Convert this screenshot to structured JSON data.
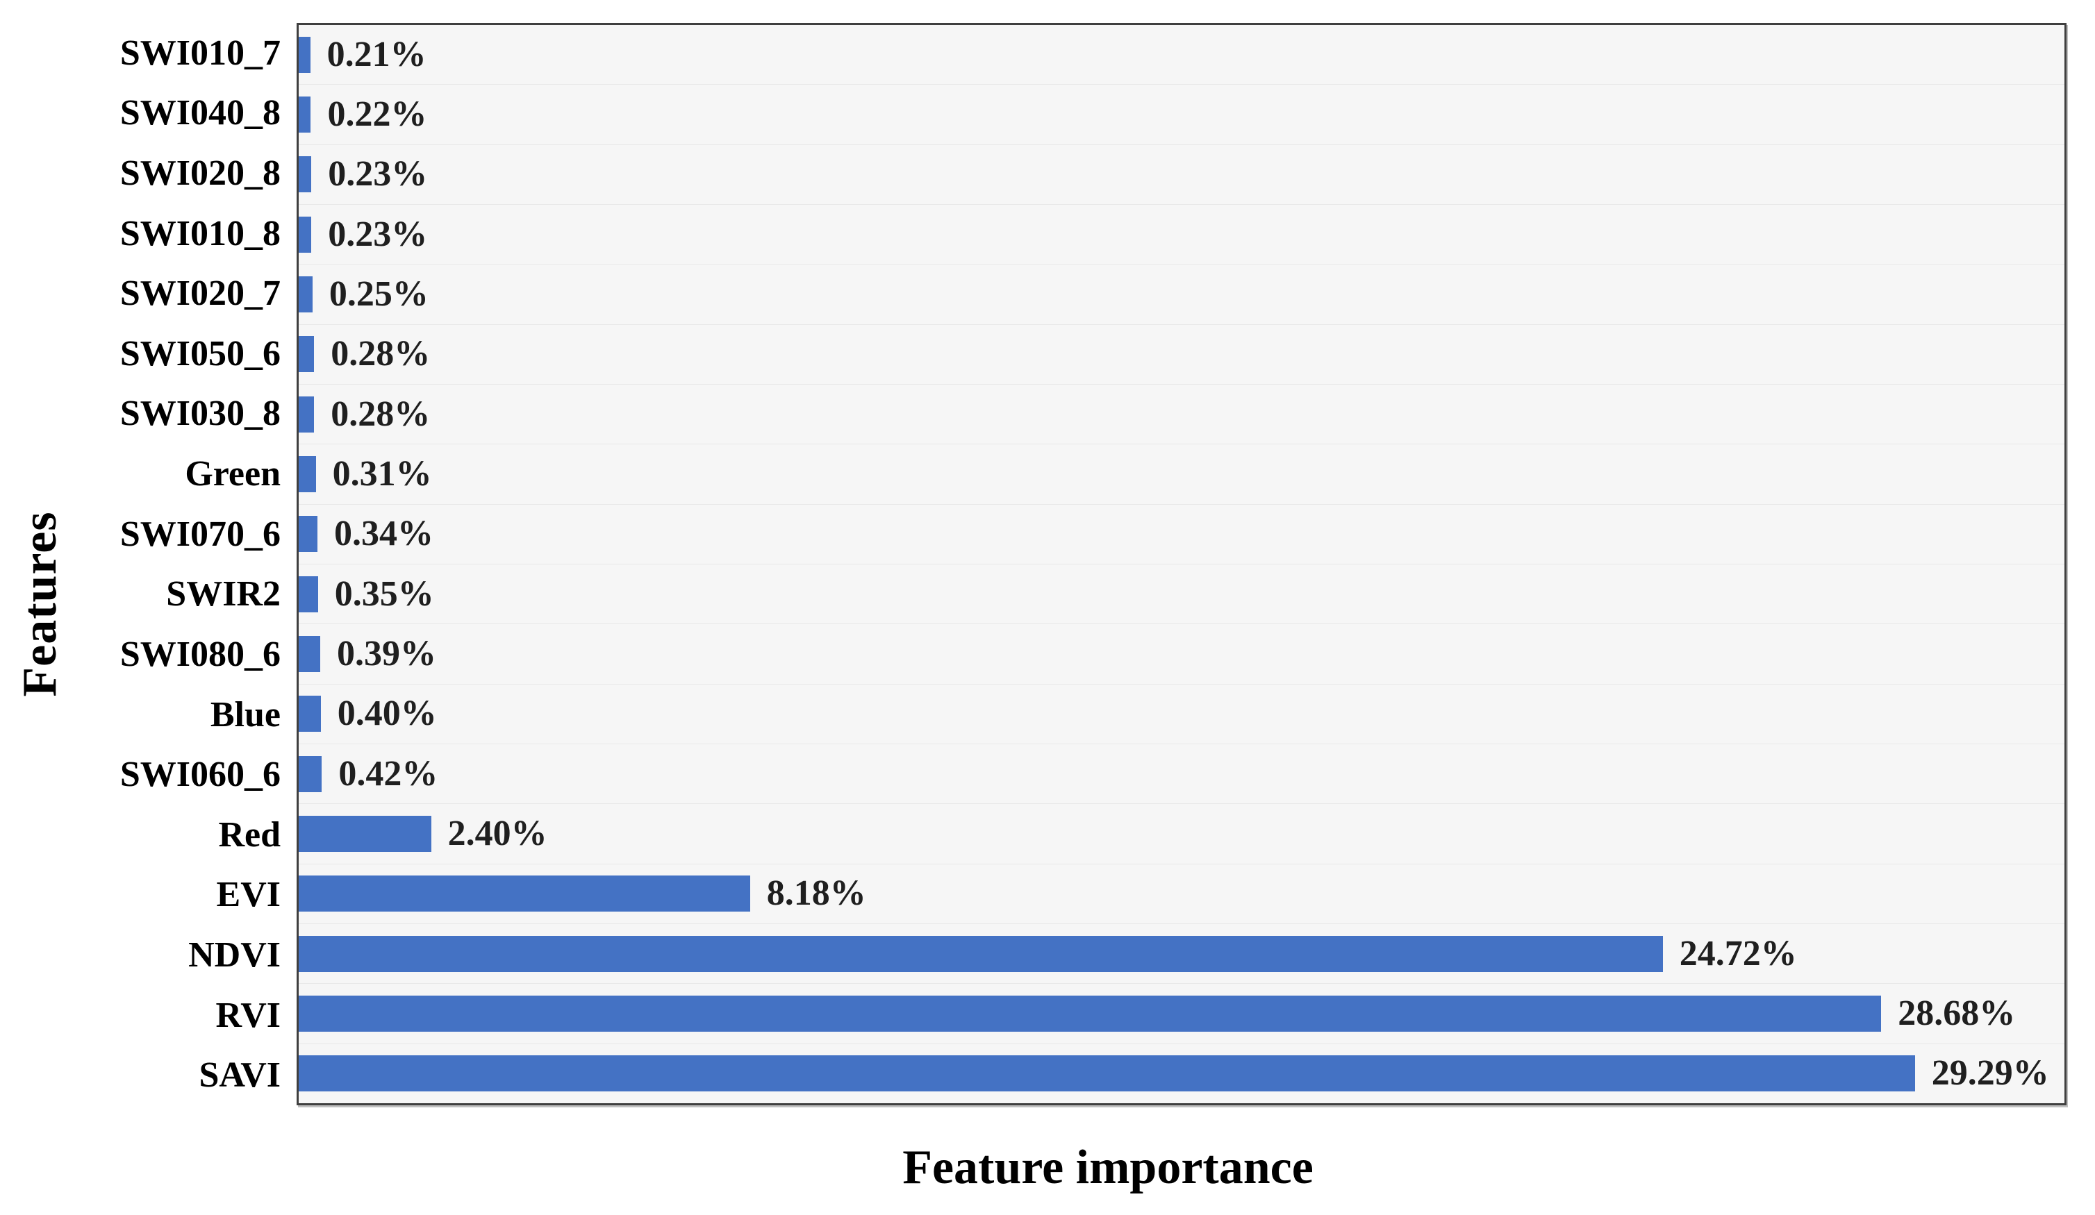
{
  "chart_data": {
    "type": "bar",
    "orientation": "horizontal",
    "xlabel": "Feature importance",
    "ylabel": "Features",
    "categories": [
      "SWI010_7",
      "SWI040_8",
      "SWI020_8",
      "SWI010_8",
      "SWI020_7",
      "SWI050_6",
      "SWI030_8",
      "Green",
      "SWI070_6",
      "SWIR2",
      "SWI080_6",
      "Blue",
      "SWI060_6",
      "Red",
      "EVI",
      "NDVI",
      "RVI",
      "SAVI"
    ],
    "values": [
      0.21,
      0.22,
      0.23,
      0.23,
      0.25,
      0.28,
      0.28,
      0.31,
      0.34,
      0.35,
      0.39,
      0.4,
      0.42,
      2.4,
      8.18,
      24.72,
      28.68,
      29.29
    ],
    "value_labels": [
      "0.21%",
      "0.22%",
      "0.23%",
      "0.23%",
      "0.25%",
      "0.28%",
      "0.28%",
      "0.31%",
      "0.34%",
      "0.35%",
      "0.39%",
      "0.40%",
      "0.42%",
      "2.40%",
      "8.18%",
      "24.72%",
      "28.68%",
      "29.29%"
    ],
    "xlim": [
      0,
      32
    ],
    "grid": "horizontal-row-separators",
    "legend": "none",
    "colors": {
      "bar": "#4472c4",
      "plot_background": "#f6f6f6",
      "grid_line": "#e8e8e8",
      "plot_border": "#3f3f3f",
      "label_text": "#000000",
      "value_text": "#1f1f1f"
    }
  }
}
